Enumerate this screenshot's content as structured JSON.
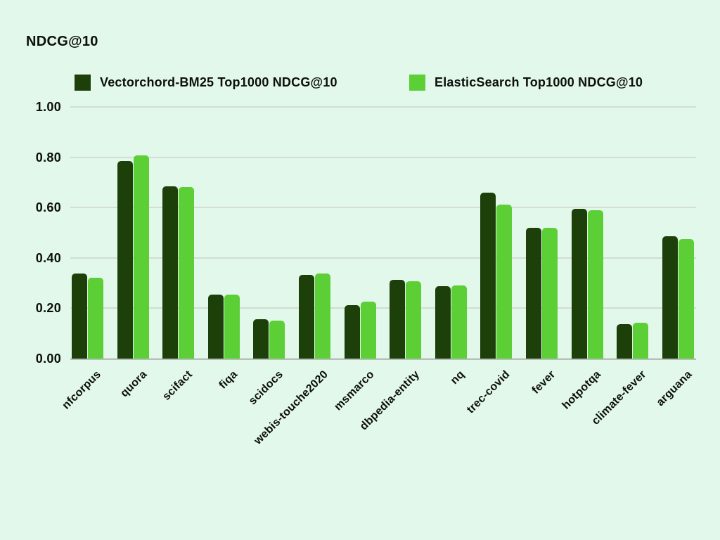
{
  "title": "NDCG@10",
  "colors": {
    "background": "#e2f8ea",
    "series1": "#1d400b",
    "series2": "#5cce36",
    "grid": "#d3ddd5",
    "baseline": "#b6c0b8",
    "text": "#0c0f0a"
  },
  "legend": {
    "item1": "Vectorchord-BM25 Top1000 NDCG@10",
    "item2": "ElasticSearch Top1000 NDCG@10"
  },
  "chart_data": {
    "type": "bar",
    "title": "NDCG@10",
    "categories": [
      "nfcorpus",
      "quora",
      "scifact",
      "fiqa",
      "scidocs",
      "webis-touche2020",
      "msmarco",
      "dbpedia-entity",
      "nq",
      "trec-covid",
      "fever",
      "hotpotqa",
      "climate-fever",
      "arguana"
    ],
    "series": [
      {
        "name": "Vectorchord-BM25 Top1000 NDCG@10",
        "color": "#1d400b",
        "values": [
          0.338,
          0.786,
          0.685,
          0.254,
          0.156,
          0.332,
          0.213,
          0.313,
          0.288,
          0.66,
          0.52,
          0.596,
          0.136,
          0.487
        ]
      },
      {
        "name": "ElasticSearch Top1000 NDCG@10",
        "color": "#5cce36",
        "values": [
          0.32,
          0.807,
          0.682,
          0.254,
          0.152,
          0.337,
          0.227,
          0.306,
          0.291,
          0.613,
          0.52,
          0.59,
          0.143,
          0.476
        ]
      }
    ],
    "xlabel": "",
    "ylabel": "NDCG@10",
    "ylim": [
      0,
      1.0
    ],
    "yticks": [
      0.0,
      0.2,
      0.4,
      0.6,
      0.8,
      1.0
    ],
    "ytick_labels": [
      "0.00",
      "0.20",
      "0.40",
      "0.60",
      "0.80",
      "1.00"
    ],
    "grid": "horizontal",
    "legend_position": "top"
  }
}
